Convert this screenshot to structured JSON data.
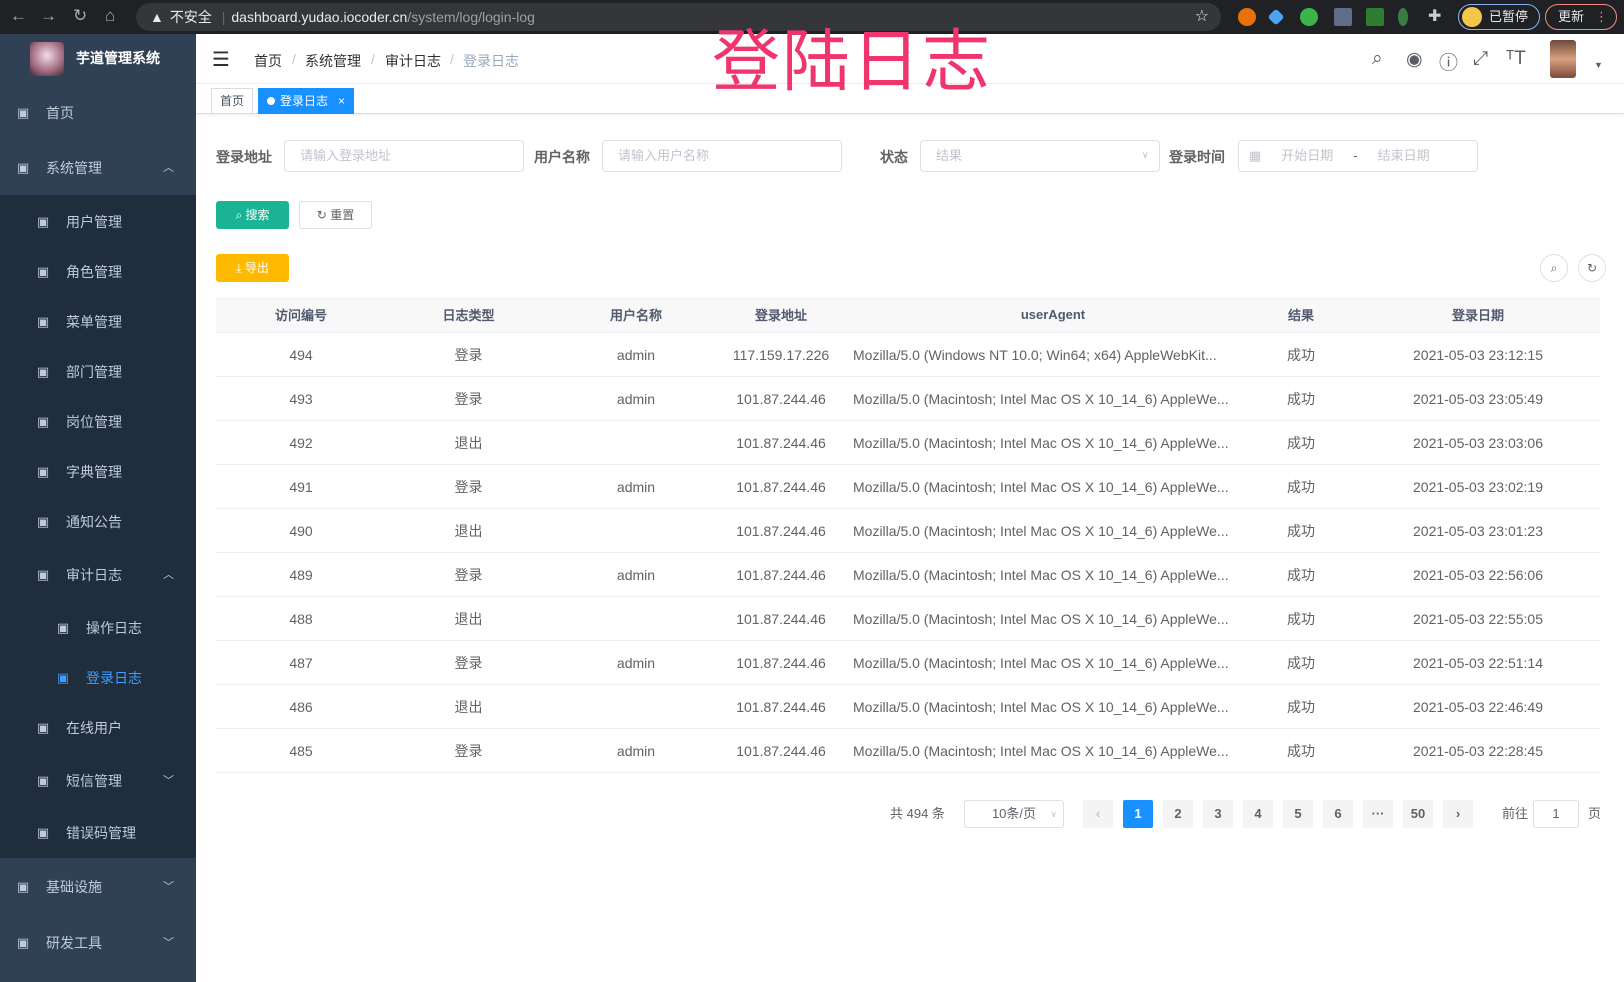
{
  "browser": {
    "url_warning": "不安全",
    "url_host": "dashboard.yudao.iocoder.cn",
    "url_path": "/system/log/login-log",
    "paused_label": "已暂停",
    "update_label": "更新"
  },
  "app": {
    "title": "芋道管理系统",
    "overlay_title": "登陆日志",
    "accent": "#1890ff",
    "sidebar_bg": "#304156"
  },
  "sidebar": {
    "items": [
      {
        "label": "首页",
        "icon": "dashboard-icon",
        "level": 0
      },
      {
        "label": "系统管理",
        "icon": "gear-icon",
        "level": 0,
        "expanded": true
      },
      {
        "label": "用户管理",
        "icon": "user-icon",
        "level": 1
      },
      {
        "label": "角色管理",
        "icon": "peoples-icon",
        "level": 1
      },
      {
        "label": "菜单管理",
        "icon": "tree-table-icon",
        "level": 1
      },
      {
        "label": "部门管理",
        "icon": "tree-icon",
        "level": 1
      },
      {
        "label": "岗位管理",
        "icon": "post-icon",
        "level": 1
      },
      {
        "label": "字典管理",
        "icon": "dict-icon",
        "level": 1
      },
      {
        "label": "通知公告",
        "icon": "message-icon",
        "level": 1
      },
      {
        "label": "审计日志",
        "icon": "log-icon",
        "level": 1,
        "expanded": true
      },
      {
        "label": "操作日志",
        "icon": "form-icon",
        "level": 2
      },
      {
        "label": "登录日志",
        "icon": "logininfor-icon",
        "level": 2,
        "active": true
      },
      {
        "label": "在线用户",
        "icon": "online-icon",
        "level": 1
      },
      {
        "label": "短信管理",
        "icon": "validcode-icon",
        "level": 1,
        "expanded": false
      },
      {
        "label": "错误码管理",
        "icon": "code-icon",
        "level": 1
      },
      {
        "label": "基础设施",
        "icon": "monitor-icon",
        "level": 0,
        "expanded": false
      },
      {
        "label": "研发工具",
        "icon": "tool-icon",
        "level": 0,
        "expanded": false
      }
    ]
  },
  "breadcrumb": [
    "首页",
    "系统管理",
    "审计日志",
    "登录日志"
  ],
  "tags": [
    {
      "label": "首页"
    },
    {
      "label": "登录日志",
      "active": true
    }
  ],
  "search": {
    "ip_label": "登录地址",
    "ip_placeholder": "请输入登录地址",
    "user_label": "用户名称",
    "user_placeholder": "请输入用户名称",
    "status_label": "状态",
    "status_placeholder": "结果",
    "time_label": "登录时间",
    "start_placeholder": "开始日期",
    "range_sep": "-",
    "end_placeholder": "结束日期",
    "search_button": "搜索",
    "reset_button": "重置",
    "export_button": "导出"
  },
  "table": {
    "columns": [
      "访问编号",
      "日志类型",
      "用户名称",
      "登录地址",
      "userAgent",
      "结果",
      "登录日期"
    ],
    "rows": [
      [
        "494",
        "登录",
        "admin",
        "117.159.17.226",
        "Mozilla/5.0 (Windows NT 10.0; Win64; x64) AppleWebKit...",
        "成功",
        "2021-05-03 23:12:15"
      ],
      [
        "493",
        "登录",
        "admin",
        "101.87.244.46",
        "Mozilla/5.0 (Macintosh; Intel Mac OS X 10_14_6) AppleWe...",
        "成功",
        "2021-05-03 23:05:49"
      ],
      [
        "492",
        "退出",
        "",
        "101.87.244.46",
        "Mozilla/5.0 (Macintosh; Intel Mac OS X 10_14_6) AppleWe...",
        "成功",
        "2021-05-03 23:03:06"
      ],
      [
        "491",
        "登录",
        "admin",
        "101.87.244.46",
        "Mozilla/5.0 (Macintosh; Intel Mac OS X 10_14_6) AppleWe...",
        "成功",
        "2021-05-03 23:02:19"
      ],
      [
        "490",
        "退出",
        "",
        "101.87.244.46",
        "Mozilla/5.0 (Macintosh; Intel Mac OS X 10_14_6) AppleWe...",
        "成功",
        "2021-05-03 23:01:23"
      ],
      [
        "489",
        "登录",
        "admin",
        "101.87.244.46",
        "Mozilla/5.0 (Macintosh; Intel Mac OS X 10_14_6) AppleWe...",
        "成功",
        "2021-05-03 22:56:06"
      ],
      [
        "488",
        "退出",
        "",
        "101.87.244.46",
        "Mozilla/5.0 (Macintosh; Intel Mac OS X 10_14_6) AppleWe...",
        "成功",
        "2021-05-03 22:55:05"
      ],
      [
        "487",
        "登录",
        "admin",
        "101.87.244.46",
        "Mozilla/5.0 (Macintosh; Intel Mac OS X 10_14_6) AppleWe...",
        "成功",
        "2021-05-03 22:51:14"
      ],
      [
        "486",
        "退出",
        "",
        "101.87.244.46",
        "Mozilla/5.0 (Macintosh; Intel Mac OS X 10_14_6) AppleWe...",
        "成功",
        "2021-05-03 22:46:49"
      ],
      [
        "485",
        "登录",
        "admin",
        "101.87.244.46",
        "Mozilla/5.0 (Macintosh; Intel Mac OS X 10_14_6) AppleWe...",
        "成功",
        "2021-05-03 22:28:45"
      ]
    ]
  },
  "pagination": {
    "total": "共 494 条",
    "page_size": "10条/页",
    "pages": [
      "1",
      "2",
      "3",
      "4",
      "5",
      "6",
      "···",
      "50"
    ],
    "current": "1",
    "goto_label": "前往",
    "goto_value": "1",
    "goto_suffix": "页"
  }
}
